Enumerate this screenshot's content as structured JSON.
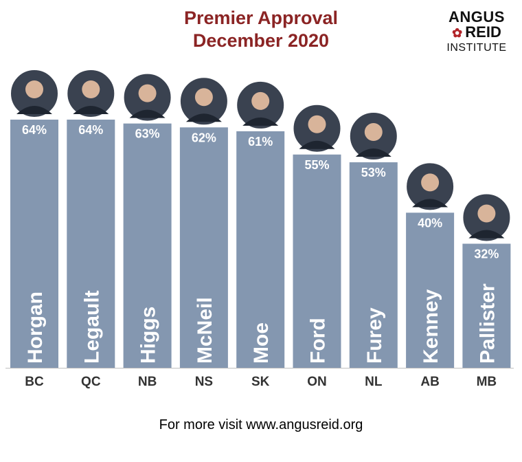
{
  "title_line1": "Premier Approval",
  "title_line2": "December 2020",
  "logo": {
    "line1": "ANGUS",
    "line2": "REID",
    "line3": "INSTITUTE",
    "icon": "maple-leaf-icon"
  },
  "footer": "For more visit www.angusreid.org",
  "colors": {
    "bar": "#8497b0",
    "title": "#8b2424",
    "label": "#ffffff",
    "province": "#333333"
  },
  "chart_data": {
    "type": "bar",
    "title": "Premier Approval December 2020",
    "categories": [
      "BC",
      "QC",
      "NB",
      "NS",
      "SK",
      "ON",
      "NL",
      "AB",
      "MB"
    ],
    "premiers": [
      "Horgan",
      "Legault",
      "Higgs",
      "McNeil",
      "Moe",
      "Ford",
      "Furey",
      "Kenney",
      "Pallister"
    ],
    "values": [
      64,
      64,
      63,
      62,
      61,
      55,
      53,
      40,
      32
    ],
    "value_labels": [
      "64%",
      "64%",
      "63%",
      "62%",
      "61%",
      "55%",
      "53%",
      "40%",
      "32%"
    ],
    "ylim": [
      0,
      64
    ],
    "grid": false,
    "legend": "none"
  }
}
